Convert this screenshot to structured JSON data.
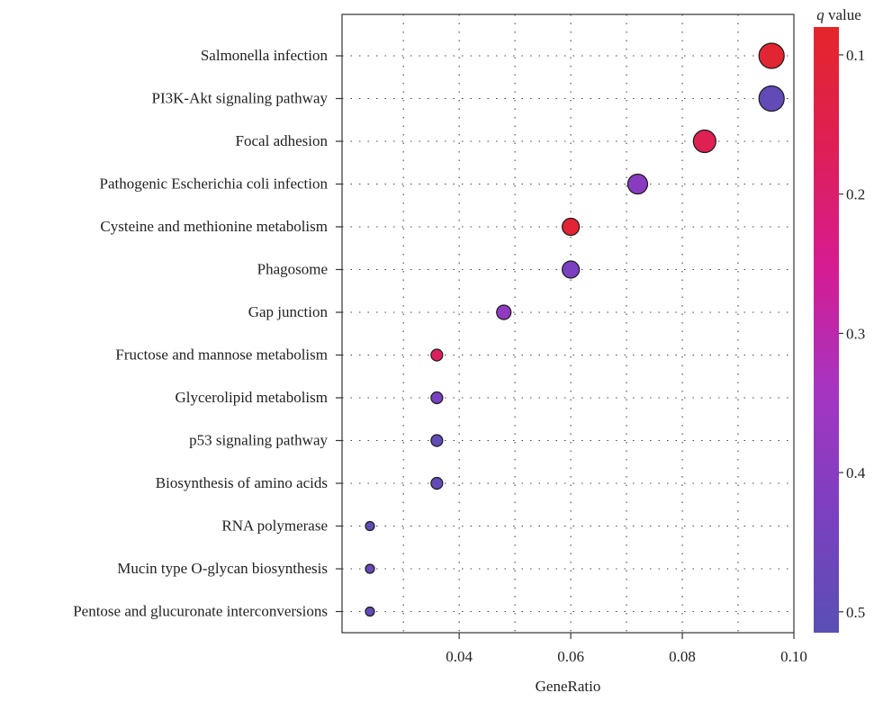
{
  "chart_data": {
    "type": "scatter",
    "title": "",
    "xlabel": "GeneRatio",
    "ylabel": "",
    "xlim": [
      0.019,
      0.1
    ],
    "xticks": [
      0.04,
      0.06,
      0.08,
      0.1
    ],
    "xtick_labels": [
      "0.04",
      "0.06",
      "0.08",
      "0.10"
    ],
    "x_grid_minor": [
      0.03,
      0.05,
      0.07,
      0.09
    ],
    "grid": true,
    "categories": [
      "Salmonella infection",
      "PI3K-Akt signaling pathway",
      "Focal adhesion",
      "Pathogenic Escherichia coli infection",
      "Cysteine and methionine metabolism",
      "Phagosome",
      "Gap junction",
      "Fructose and mannose metabolism",
      "Glycerolipid metabolism",
      "p53 signaling pathway",
      "Biosynthesis of amino acids",
      "RNA polymerase",
      "Mucin type O-glycan biosynthesis",
      "Pentose and glucuronate interconversions"
    ],
    "points": [
      {
        "term": "Salmonella infection",
        "gene_ratio": 0.096,
        "q_value": 0.095,
        "count": 8
      },
      {
        "term": "PI3K-Akt signaling pathway",
        "gene_ratio": 0.096,
        "q_value": 0.49,
        "count": 8
      },
      {
        "term": "Focal adhesion",
        "gene_ratio": 0.084,
        "q_value": 0.16,
        "count": 7
      },
      {
        "term": "Pathogenic Escherichia coli infection",
        "gene_ratio": 0.072,
        "q_value": 0.4,
        "count": 6
      },
      {
        "term": "Cysteine and methionine metabolism",
        "gene_ratio": 0.06,
        "q_value": 0.1,
        "count": 5
      },
      {
        "term": "Phagosome",
        "gene_ratio": 0.06,
        "q_value": 0.43,
        "count": 5
      },
      {
        "term": "Gap junction",
        "gene_ratio": 0.048,
        "q_value": 0.38,
        "count": 4
      },
      {
        "term": "Fructose and mannose metabolism",
        "gene_ratio": 0.036,
        "q_value": 0.18,
        "count": 3
      },
      {
        "term": "Glycerolipid metabolism",
        "gene_ratio": 0.036,
        "q_value": 0.44,
        "count": 3
      },
      {
        "term": "p53 signaling pathway",
        "gene_ratio": 0.036,
        "q_value": 0.49,
        "count": 3
      },
      {
        "term": "Biosynthesis of amino acids",
        "gene_ratio": 0.036,
        "q_value": 0.49,
        "count": 3
      },
      {
        "term": "RNA polymerase",
        "gene_ratio": 0.024,
        "q_value": 0.49,
        "count": 2
      },
      {
        "term": "Mucin type O-glycan biosynthesis",
        "gene_ratio": 0.024,
        "q_value": 0.48,
        "count": 2
      },
      {
        "term": "Pentose and glucuronate interconversions",
        "gene_ratio": 0.024,
        "q_value": 0.49,
        "count": 2
      }
    ],
    "colorbar": {
      "title_italic": "q",
      "title_rest": " value",
      "ticks": [
        0.1,
        0.2,
        0.3,
        0.4,
        0.5
      ],
      "tick_labels": [
        "0.1",
        "0.2",
        "0.3",
        "0.4",
        "0.5"
      ],
      "range": [
        0.08,
        0.515
      ],
      "colors": [
        "#e3262a",
        "#de1f56",
        "#d51c92",
        "#a535c1",
        "#7b40c0",
        "#5a4fb3"
      ]
    }
  }
}
